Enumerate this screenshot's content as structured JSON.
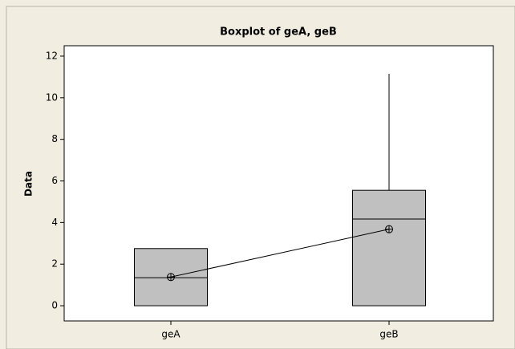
{
  "chart_data": {
    "type": "box",
    "title": "Boxplot of geA, geB",
    "y_label": "Data",
    "categories": [
      "geA",
      "geB"
    ],
    "boxes": [
      {
        "min": 0,
        "q1": 0,
        "median": 1.35,
        "q3": 2.75,
        "max": 2.75,
        "mean": 1.38
      },
      {
        "min": 0,
        "q1": 0,
        "median": 4.17,
        "q3": 5.55,
        "max": 11.15,
        "mean": 3.68
      }
    ],
    "color": "#c0c0c0",
    "mean_connect": true,
    "ylim": [
      -0.73,
      12.5
    ],
    "yticks": [
      0,
      2,
      4,
      6,
      8,
      10,
      12
    ]
  }
}
